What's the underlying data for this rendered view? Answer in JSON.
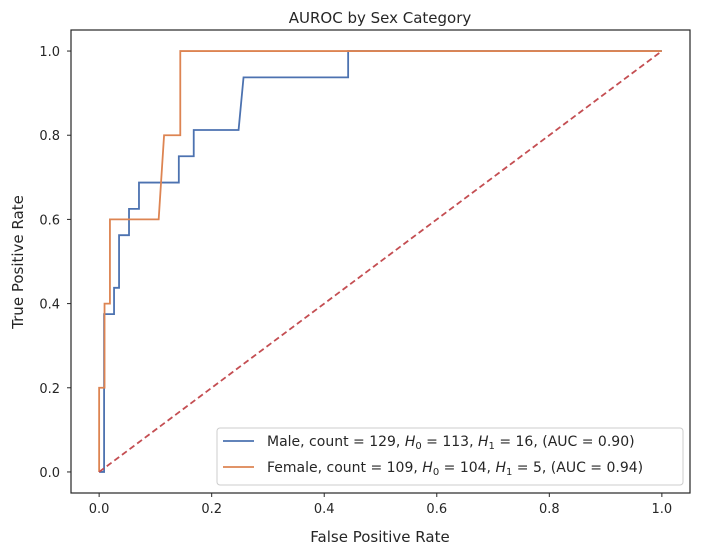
{
  "chart_data": {
    "type": "line",
    "title": "AUROC by Sex Category",
    "xlabel": "False Positive Rate",
    "ylabel": "True Positive Rate",
    "xlim": [
      -0.05,
      1.05
    ],
    "ylim": [
      -0.05,
      1.05
    ],
    "xticks": [
      0.0,
      0.2,
      0.4,
      0.6,
      0.8,
      1.0
    ],
    "xtick_labels": [
      "0.0",
      "0.2",
      "0.4",
      "0.6",
      "0.8",
      "1.0"
    ],
    "yticks": [
      0.0,
      0.2,
      0.4,
      0.6,
      0.8,
      1.0
    ],
    "ytick_labels": [
      "0.0",
      "0.2",
      "0.4",
      "0.6",
      "0.8",
      "1.0"
    ],
    "grid": false,
    "legend_position": "bottom-right",
    "series": [
      {
        "name": "Male",
        "legend_parts": [
          "Male, count = 129, ",
          "H",
          "0",
          " = 113, ",
          "H",
          "1",
          " = 16, (AUC = 0.90)"
        ],
        "color": "#4c72b0",
        "x": [
          0,
          0.0088,
          0.0088,
          0.0265,
          0.0265,
          0.0354,
          0.0354,
          0.0531,
          0.0531,
          0.0708,
          0.0708,
          0.1416,
          0.1416,
          0.1681,
          0.1681,
          0.2478,
          0.2566,
          0.4425,
          0.4425,
          1.0
        ],
        "y": [
          0,
          0,
          0.375,
          0.375,
          0.4375,
          0.4375,
          0.5625,
          0.5625,
          0.625,
          0.625,
          0.6875,
          0.6875,
          0.75,
          0.75,
          0.8125,
          0.8125,
          0.9375,
          0.9375,
          1.0,
          1.0
        ]
      },
      {
        "name": "Female",
        "legend_parts": [
          "Female, count = 109, ",
          "H",
          "0",
          " = 104, ",
          "H",
          "1",
          " = 5, (AUC = 0.94)"
        ],
        "color": "#dd8452",
        "x": [
          0,
          0,
          0.0096,
          0.0096,
          0.0192,
          0.0192,
          0.1058,
          0.1154,
          0.1442,
          0.1442,
          1.0
        ],
        "y": [
          0,
          0.2,
          0.2,
          0.4,
          0.4,
          0.6,
          0.6,
          0.8,
          0.8,
          1.0,
          1.0
        ]
      }
    ],
    "reference_line": {
      "x": [
        0,
        1
      ],
      "y": [
        0,
        1
      ],
      "color": "#c44e52",
      "style": "dashed"
    }
  }
}
